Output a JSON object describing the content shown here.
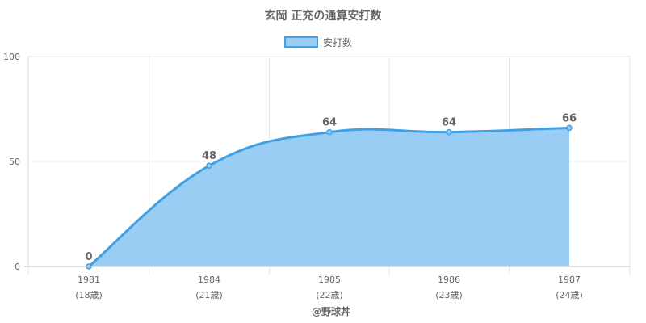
{
  "chart_data": {
    "type": "area",
    "title": "玄岡 正充の通算安打数",
    "legend": {
      "label": "安打数",
      "position": "top"
    },
    "categories": [
      "1981",
      "1984",
      "1985",
      "1986",
      "1987"
    ],
    "subcategories": [
      "(18歳)",
      "(21歳)",
      "(22歳)",
      "(23歳)",
      "(24歳)"
    ],
    "series": [
      {
        "name": "安打数",
        "values": [
          0,
          48,
          64,
          64,
          66
        ]
      }
    ],
    "ylim": [
      0,
      100
    ],
    "yticks": [
      "0",
      "50",
      "100"
    ],
    "grid": true,
    "colors": {
      "line": "#3fa0e3",
      "fill": "#99cdf4",
      "grid": "#e6e6e6",
      "text": "#666666"
    }
  },
  "footer": {
    "credit": "@野球丼"
  }
}
